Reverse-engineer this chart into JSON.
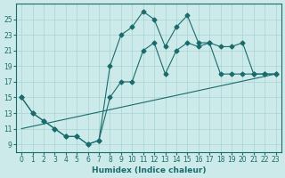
{
  "xlabel": "Humidex (Indice chaleur)",
  "bg_color": "#cdeaea",
  "line_color": "#1a6b6b",
  "xlim": [
    -0.5,
    23.5
  ],
  "ylim": [
    8,
    27
  ],
  "xticks": [
    0,
    1,
    2,
    3,
    4,
    5,
    6,
    7,
    8,
    9,
    10,
    11,
    12,
    13,
    14,
    15,
    16,
    17,
    18,
    19,
    20,
    21,
    22,
    23
  ],
  "yticks": [
    9,
    11,
    13,
    15,
    17,
    19,
    21,
    23,
    25
  ],
  "line1_x": [
    0,
    1,
    2,
    3,
    4,
    5,
    6,
    7,
    8,
    9,
    10,
    11,
    12,
    13,
    14,
    15,
    16,
    17,
    18,
    19,
    20,
    21,
    22,
    23
  ],
  "line1_y": [
    15,
    13,
    12,
    11,
    10,
    10,
    9,
    9.5,
    19,
    23,
    24,
    26,
    25,
    21.5,
    24,
    25.5,
    22,
    22,
    18,
    18,
    18,
    18,
    18,
    18
  ],
  "line2_x": [
    0,
    1,
    2,
    3,
    4,
    5,
    6,
    7,
    8,
    9,
    10,
    11,
    12,
    13,
    14,
    15,
    16,
    17,
    18,
    19,
    20,
    21,
    22,
    23
  ],
  "line2_y": [
    15,
    13,
    12,
    11,
    10,
    10,
    9,
    9.5,
    15,
    17,
    17,
    21,
    22,
    18,
    21,
    22,
    21.5,
    22,
    21.5,
    21.5,
    22,
    18,
    18,
    18
  ],
  "line3_x": [
    0,
    23
  ],
  "line3_y": [
    11,
    18
  ],
  "grid_color": "#a8d4d4",
  "marker": "D",
  "markersize": 2.5
}
